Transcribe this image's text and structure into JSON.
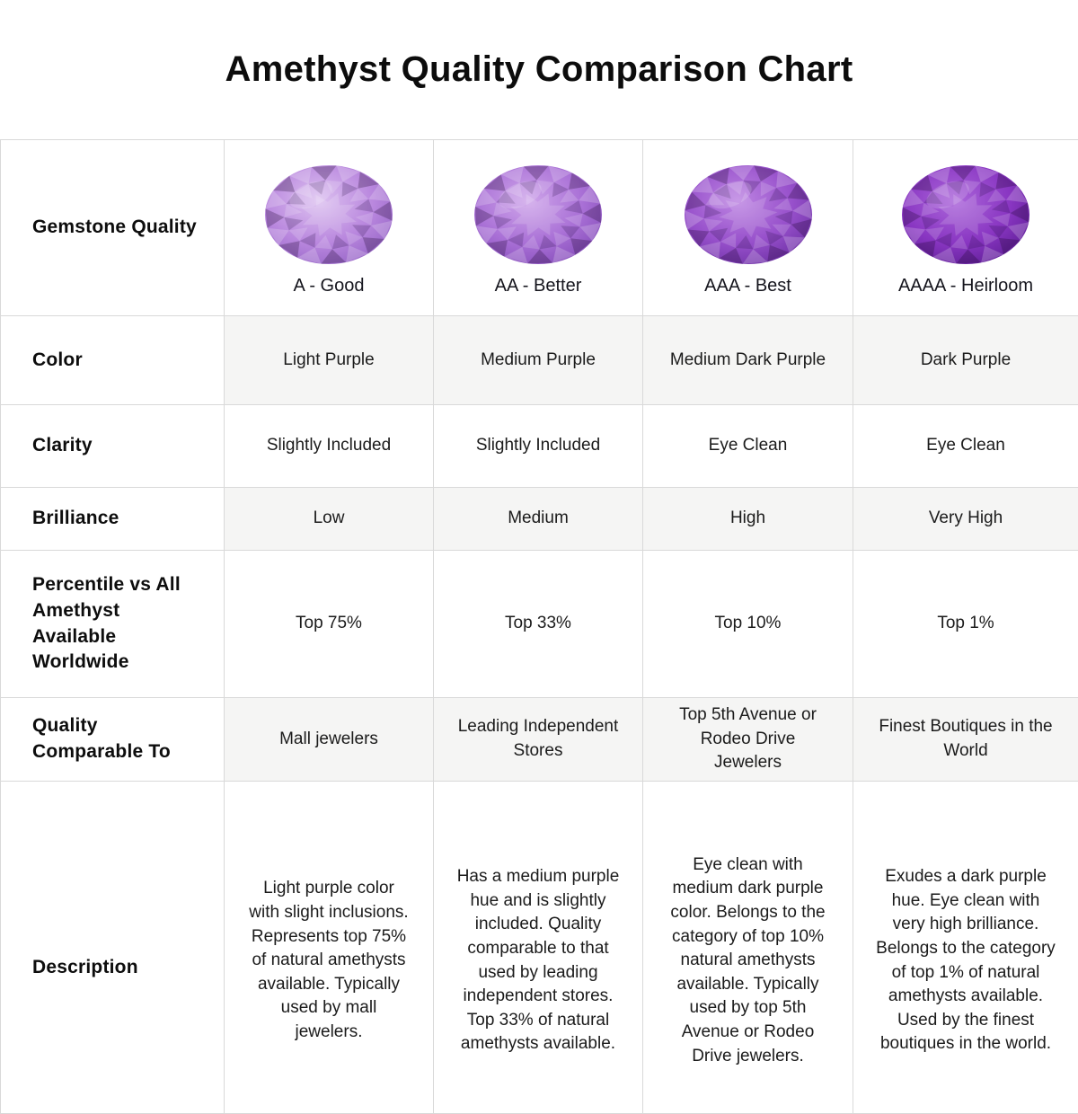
{
  "title": "Amethyst Quality Comparison Chart",
  "colors": {
    "header_row_bg": "#f2f6fc",
    "shaded_row_bg": "#f5f5f4",
    "border": "#d9d9d9",
    "text": "#1b1b1b"
  },
  "table": {
    "header": {
      "label": "Gemstone Quality",
      "columns": [
        {
          "label": "A - Good",
          "icon": "amethyst-gem-icon",
          "gem_colors": {
            "light": "#ddc2f0",
            "mid": "#b987de",
            "dark": "#8f5ec2"
          }
        },
        {
          "label": "AA - Better",
          "icon": "amethyst-gem-icon",
          "gem_colors": {
            "light": "#cfa6ea",
            "mid": "#a970d6",
            "dark": "#7e46b4"
          }
        },
        {
          "label": "AAA - Best",
          "icon": "amethyst-gem-icon",
          "gem_colors": {
            "light": "#bd85e2",
            "mid": "#9750cb",
            "dark": "#662b9e"
          }
        },
        {
          "label": "AAAA - Heirloom",
          "icon": "amethyst-gem-icon",
          "gem_colors": {
            "light": "#ab66da",
            "mid": "#8936c2",
            "dark": "#571a8e"
          }
        }
      ]
    },
    "rows": [
      {
        "label": "Color",
        "shaded": true,
        "values": [
          "Light Purple",
          "Medium Purple",
          "Medium Dark Purple",
          "Dark Purple"
        ]
      },
      {
        "label": "Clarity",
        "shaded": false,
        "values": [
          "Slightly Included",
          "Slightly Included",
          "Eye Clean",
          "Eye Clean"
        ]
      },
      {
        "label": "Brilliance",
        "shaded": true,
        "values": [
          "Low",
          "Medium",
          "High",
          "Very High"
        ]
      },
      {
        "label": "Percentile vs All Amethyst Available Worldwide",
        "shaded": false,
        "values": [
          "Top 75%",
          "Top 33%",
          "Top 10%",
          "Top 1%"
        ]
      },
      {
        "label": "Quality Comparable To",
        "shaded": true,
        "values": [
          "Mall jewelers",
          "Leading Independent Stores",
          "Top 5th Avenue or Rodeo Drive Jewelers",
          "Finest Boutiques in the World"
        ]
      },
      {
        "label": "Description",
        "shaded": false,
        "values": [
          "Light purple color with slight inclusions. Represents top 75% of natural amethysts available. Typically used by mall jewelers.",
          "Has a medium purple hue and is slightly included. Quality comparable to that used by leading independent stores. Top 33% of natural amethysts available.",
          "Eye clean with medium dark purple color. Belongs to the category of top 10% natural amethysts available. Typically used by top 5th Avenue or Rodeo Drive jewelers.",
          "Exudes a dark purple hue. Eye clean with very high brilliance. Belongs to the category of top 1% of natural amethysts available. Used by the finest boutiques in the world."
        ]
      }
    ]
  }
}
